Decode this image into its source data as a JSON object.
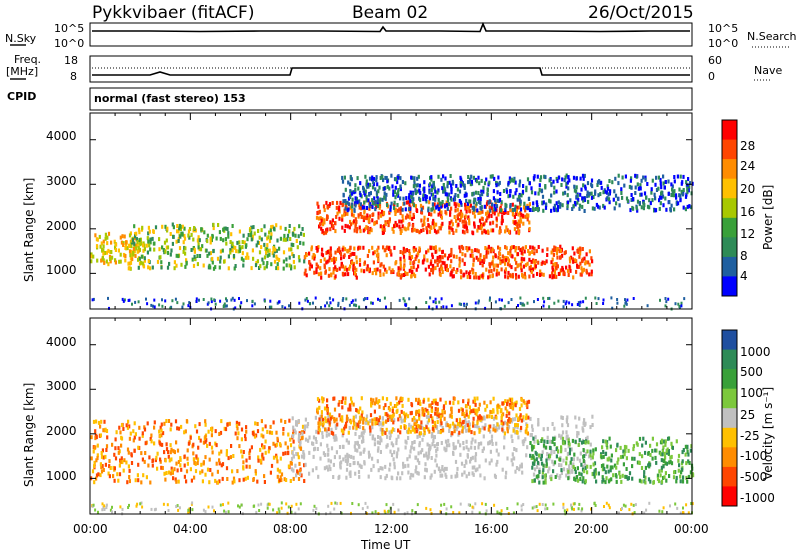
{
  "header": {
    "station": "Pykkvibaer (fitACF)",
    "beam": "Beam 02",
    "date": "26/Oct/2015"
  },
  "top_panels": {
    "nsky": {
      "left_label": "N.Sky",
      "left_ticks": [
        "10^5",
        "10^0"
      ],
      "right_ticks": [
        "10^5",
        "10^0"
      ],
      "right_label": "N.Search"
    },
    "freq": {
      "left_label_1": "Freq.",
      "left_label_2": "[MHz]",
      "left_ticks": [
        "18",
        "8"
      ],
      "right_ticks": [
        "60",
        "0"
      ],
      "right_label": "Nave"
    },
    "cpid": {
      "label": "CPID",
      "text": "normal (fast stereo) 153"
    }
  },
  "chart_data": [
    {
      "type": "heatmap",
      "panel": "power",
      "ylabel": "Slant Range [km]",
      "yticks": [
        1000,
        2000,
        3000,
        4000
      ],
      "ylim": [
        200,
        4600
      ],
      "xticks": [
        "00:00",
        "04:00",
        "08:00",
        "12:00",
        "16:00",
        "20:00",
        "00:00"
      ],
      "colorbar": {
        "label": "Power [dB]",
        "ticks": [
          "28",
          "24",
          "20",
          "16",
          "12",
          "8",
          "4"
        ],
        "colors": [
          "#ff0000",
          "#ff4500",
          "#ff8c00",
          "#ffc000",
          "#a8c800",
          "#39a039",
          "#2e8b57",
          "#1f5fa0",
          "#0000ff"
        ]
      },
      "bands": [
        {
          "t": [
            0.0,
            2.0
          ],
          "r": [
            1200,
            1900
          ],
          "level": "mid-high"
        },
        {
          "t": [
            1.5,
            8.5
          ],
          "r": [
            1100,
            2100
          ],
          "level": "mid"
        },
        {
          "t": [
            8.5,
            20.0
          ],
          "r": [
            900,
            1600
          ],
          "level": "high"
        },
        {
          "t": [
            9.0,
            17.5
          ],
          "r": [
            1900,
            2600
          ],
          "level": "high"
        },
        {
          "t": [
            10.0,
            24.0
          ],
          "r": [
            2400,
            3200
          ],
          "level": "low"
        }
      ]
    },
    {
      "type": "heatmap",
      "panel": "velocity",
      "ylabel": "Slant Range [km]",
      "yticks": [
        1000,
        2000,
        3000,
        4000
      ],
      "ylim": [
        200,
        4600
      ],
      "xticks": [
        "00:00",
        "04:00",
        "08:00",
        "12:00",
        "16:00",
        "20:00",
        "00:00"
      ],
      "xlabel": "Time UT",
      "colorbar": {
        "label": "Velocity [m s⁻¹]",
        "ticks": [
          "1000",
          "500",
          "100",
          "25",
          "-25",
          "-100",
          "-500",
          "-1000"
        ],
        "colors": [
          "#1f4fa0",
          "#2e8b57",
          "#39a039",
          "#7cc83c",
          "#c0c0c0",
          "#ffc000",
          "#ff8c00",
          "#ff4500",
          "#ff0000"
        ]
      },
      "bands": [
        {
          "t": [
            0.0,
            8.5
          ],
          "r": [
            900,
            2300
          ],
          "level": "negative"
        },
        {
          "t": [
            8.0,
            20.0
          ],
          "r": [
            1000,
            2400
          ],
          "level": "ground-scatter"
        },
        {
          "t": [
            9.0,
            17.5
          ],
          "r": [
            2000,
            2800
          ],
          "level": "negative"
        },
        {
          "t": [
            17.5,
            24.0
          ],
          "r": [
            900,
            1900
          ],
          "level": "positive"
        }
      ]
    }
  ]
}
